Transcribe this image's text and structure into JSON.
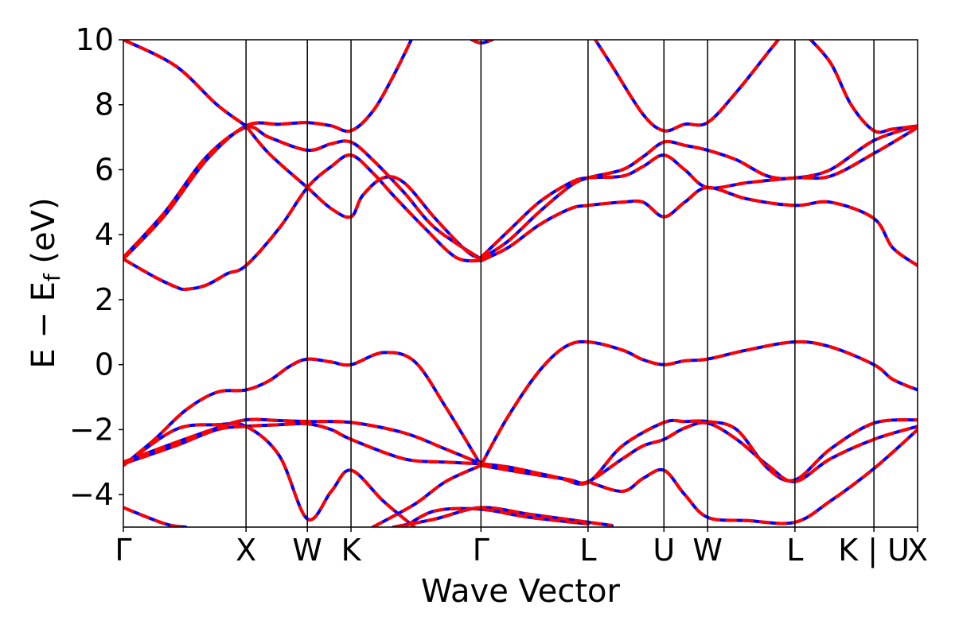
{
  "chart_data": {
    "type": "line",
    "title": "",
    "xlabel": "Wave Vector",
    "ylabel_parts": {
      "main": "E − E",
      "sub": "f",
      "unit": " (eV)"
    },
    "ylim": [
      -5,
      10
    ],
    "xlim": [
      0,
      7.64
    ],
    "yticks": [
      -4,
      -2,
      0,
      2,
      4,
      6,
      8,
      10
    ],
    "ytick_labels": [
      "−4",
      "−2",
      "0",
      "2",
      "4",
      "6",
      "8",
      "10"
    ],
    "kpoint_positions": [
      0,
      1.18,
      1.77,
      2.19,
      3.44,
      4.47,
      5.2,
      5.62,
      6.46,
      7.22,
      7.64
    ],
    "kpoint_labels": [
      "Γ",
      "X",
      "W",
      "K",
      "Γ",
      "L",
      "U",
      "W",
      "L",
      "K | U",
      "X"
    ],
    "grid": false,
    "legend": "none",
    "colors": {
      "series_1": "#0000ff",
      "series_2": "#ff0000",
      "vlines": "#000000"
    },
    "series": [
      {
        "style": "solid",
        "bands": [
          [
            [
              0,
              -3.1
            ],
            [
              0.3,
              -2.3
            ],
            [
              0.6,
              -1.4
            ],
            [
              0.9,
              -0.85
            ],
            [
              1.18,
              -0.78
            ],
            [
              1.4,
              -0.5
            ],
            [
              1.6,
              -0.05
            ],
            [
              1.77,
              0.17
            ],
            [
              2.0,
              0.08
            ],
            [
              2.19,
              0.0
            ],
            [
              2.5,
              0.37
            ],
            [
              2.8,
              0.1
            ],
            [
              3.1,
              -1.3
            ],
            [
              3.44,
              -3.1
            ]
          ],
          [
            [
              3.44,
              -3.1
            ],
            [
              3.7,
              -1.6
            ],
            [
              4.0,
              -0.2
            ],
            [
              4.25,
              0.55
            ],
            [
              4.47,
              0.7
            ],
            [
              4.8,
              0.45
            ],
            [
              5.0,
              0.15
            ],
            [
              5.2,
              0.0
            ],
            [
              5.4,
              0.12
            ],
            [
              5.62,
              0.17
            ],
            [
              6.0,
              0.45
            ],
            [
              6.46,
              0.7
            ],
            [
              6.8,
              0.55
            ],
            [
              7.22,
              0.0
            ],
            [
              7.4,
              -0.45
            ],
            [
              7.64,
              -0.78
            ]
          ],
          [
            [
              0,
              -3.0
            ],
            [
              0.5,
              -2.4
            ],
            [
              0.9,
              -1.95
            ],
            [
              1.18,
              -1.7
            ],
            [
              1.5,
              -1.72
            ],
            [
              1.77,
              -1.75
            ],
            [
              2.19,
              -1.78
            ],
            [
              2.7,
              -2.1
            ],
            [
              3.1,
              -2.6
            ],
            [
              3.44,
              -3.05
            ]
          ],
          [
            [
              0,
              -3.05
            ],
            [
              0.5,
              -2.5
            ],
            [
              0.9,
              -2.0
            ],
            [
              1.18,
              -1.9
            ],
            [
              1.5,
              -1.85
            ],
            [
              1.77,
              -1.82
            ],
            [
              2.0,
              -2.0
            ],
            [
              2.19,
              -2.3
            ],
            [
              2.7,
              -2.9
            ],
            [
              3.1,
              -3.0
            ],
            [
              3.44,
              -3.05
            ]
          ],
          [
            [
              0,
              -3.1
            ],
            [
              0.5,
              -2.0
            ],
            [
              0.9,
              -1.85
            ],
            [
              1.18,
              -1.9
            ],
            [
              1.5,
              -2.8
            ],
            [
              1.77,
              -4.75
            ],
            [
              2.0,
              -3.9
            ],
            [
              2.19,
              -3.25
            ],
            [
              2.5,
              -4.2
            ],
            [
              2.8,
              -5.0
            ]
          ],
          [
            [
              3.44,
              -3.05
            ],
            [
              3.7,
              -3.15
            ],
            [
              4.0,
              -3.35
            ],
            [
              4.3,
              -3.55
            ],
            [
              4.47,
              -3.6
            ],
            [
              4.8,
              -2.9
            ],
            [
              5.0,
              -2.5
            ],
            [
              5.2,
              -2.3
            ],
            [
              5.4,
              -1.95
            ],
            [
              5.62,
              -1.8
            ],
            [
              5.9,
              -2.3
            ],
            [
              6.2,
              -3.1
            ],
            [
              6.46,
              -3.6
            ],
            [
              6.8,
              -2.9
            ],
            [
              7.22,
              -2.3
            ],
            [
              7.64,
              -1.9
            ]
          ],
          [
            [
              3.44,
              -3.1
            ],
            [
              3.8,
              -3.3
            ],
            [
              4.2,
              -3.5
            ],
            [
              4.47,
              -3.62
            ],
            [
              4.8,
              -2.5
            ],
            [
              5.2,
              -1.78
            ],
            [
              5.4,
              -1.75
            ],
            [
              5.62,
              -1.75
            ],
            [
              5.9,
              -2.0
            ],
            [
              6.2,
              -3.2
            ],
            [
              6.46,
              -3.55
            ],
            [
              6.8,
              -2.6
            ],
            [
              7.22,
              -1.8
            ],
            [
              7.64,
              -1.7
            ]
          ],
          [
            [
              4.47,
              -3.6
            ],
            [
              4.8,
              -3.9
            ],
            [
              5.0,
              -3.5
            ],
            [
              5.2,
              -3.25
            ],
            [
              5.4,
              -4.0
            ],
            [
              5.62,
              -4.7
            ],
            [
              6.0,
              -4.8
            ],
            [
              6.46,
              -4.85
            ],
            [
              6.8,
              -4.2
            ],
            [
              7.22,
              -3.2
            ],
            [
              7.64,
              -2.0
            ]
          ],
          [
            [
              0,
              -4.4
            ],
            [
              0.4,
              -4.9
            ],
            [
              0.6,
              -5.0
            ]
          ],
          [
            [
              2.6,
              -5.0
            ],
            [
              3.0,
              -4.75
            ],
            [
              3.44,
              -4.4
            ],
            [
              3.9,
              -4.6
            ],
            [
              4.47,
              -4.85
            ],
            [
              4.7,
              -4.95
            ]
          ],
          [
            [
              2.7,
              -5.0
            ],
            [
              3.0,
              -4.5
            ],
            [
              3.44,
              -4.45
            ],
            [
              3.9,
              -4.7
            ],
            [
              4.47,
              -4.9
            ]
          ],
          [
            [
              2.4,
              -5.0
            ],
            [
              2.8,
              -4.3
            ],
            [
              3.1,
              -3.6
            ],
            [
              3.44,
              -3.1
            ]
          ],
          [
            [
              0,
              3.25
            ],
            [
              0.3,
              2.7
            ],
            [
              0.5,
              2.4
            ],
            [
              0.6,
              2.32
            ],
            [
              0.8,
              2.45
            ],
            [
              1.0,
              2.8
            ],
            [
              1.18,
              3.05
            ],
            [
              1.5,
              4.2
            ],
            [
              1.77,
              5.45
            ],
            [
              2.0,
              6.1
            ],
            [
              2.19,
              6.45
            ],
            [
              2.4,
              5.9
            ],
            [
              2.6,
              5.2
            ],
            [
              2.9,
              4.2
            ],
            [
              3.2,
              3.3
            ],
            [
              3.44,
              3.2
            ]
          ],
          [
            [
              0,
              3.25
            ],
            [
              0.4,
              4.6
            ],
            [
              0.8,
              6.3
            ],
            [
              1.18,
              7.35
            ],
            [
              1.5,
              7.4
            ],
            [
              1.77,
              7.45
            ],
            [
              2.0,
              7.35
            ],
            [
              2.19,
              7.2
            ],
            [
              2.4,
              7.8
            ],
            [
              2.6,
              8.9
            ],
            [
              2.8,
              10.2
            ]
          ],
          [
            [
              0,
              3.3
            ],
            [
              0.4,
              4.7
            ],
            [
              0.8,
              6.4
            ],
            [
              1.18,
              7.3
            ],
            [
              1.4,
              7.0
            ],
            [
              1.77,
              6.6
            ],
            [
              2.0,
              6.8
            ],
            [
              2.19,
              6.85
            ],
            [
              2.4,
              6.3
            ],
            [
              2.7,
              5.3
            ],
            [
              3.0,
              4.2
            ],
            [
              3.44,
              3.25
            ]
          ],
          [
            [
              1.18,
              7.35
            ],
            [
              1.4,
              6.5
            ],
            [
              1.77,
              5.45
            ],
            [
              2.0,
              4.8
            ],
            [
              2.19,
              4.55
            ],
            [
              2.3,
              5.2
            ],
            [
              2.5,
              5.75
            ],
            [
              2.7,
              5.6
            ],
            [
              3.0,
              4.5
            ],
            [
              3.3,
              3.5
            ],
            [
              3.44,
              3.25
            ]
          ],
          [
            [
              0,
              10.0
            ],
            [
              0.5,
              9.2
            ],
            [
              0.9,
              8.0
            ],
            [
              1.18,
              7.35
            ]
          ],
          [
            [
              3.44,
              3.25
            ],
            [
              3.7,
              3.8
            ],
            [
              4.0,
              4.7
            ],
            [
              4.3,
              5.5
            ],
            [
              4.47,
              5.75
            ],
            [
              4.8,
              6.0
            ],
            [
              5.0,
              6.4
            ],
            [
              5.2,
              6.85
            ],
            [
              5.4,
              6.75
            ],
            [
              5.62,
              6.6
            ],
            [
              5.9,
              6.3
            ],
            [
              6.2,
              5.8
            ],
            [
              6.46,
              5.75
            ],
            [
              6.8,
              6.0
            ],
            [
              7.22,
              6.9
            ],
            [
              7.64,
              7.35
            ]
          ],
          [
            [
              3.44,
              3.2
            ],
            [
              3.7,
              3.6
            ],
            [
              4.0,
              4.3
            ],
            [
              4.3,
              4.8
            ],
            [
              4.47,
              4.9
            ],
            [
              4.8,
              5.0
            ],
            [
              5.0,
              5.0
            ],
            [
              5.2,
              4.55
            ],
            [
              5.4,
              5.0
            ],
            [
              5.62,
              5.45
            ],
            [
              6.0,
              5.1
            ],
            [
              6.46,
              4.9
            ],
            [
              6.8,
              5.0
            ],
            [
              7.22,
              4.5
            ],
            [
              7.4,
              3.6
            ],
            [
              7.64,
              3.05
            ]
          ],
          [
            [
              3.44,
              3.3
            ],
            [
              3.7,
              4.1
            ],
            [
              4.0,
              5.0
            ],
            [
              4.3,
              5.6
            ],
            [
              4.47,
              5.75
            ],
            [
              4.8,
              5.8
            ],
            [
              5.0,
              6.1
            ],
            [
              5.2,
              6.45
            ],
            [
              5.4,
              6.0
            ],
            [
              5.62,
              5.45
            ],
            [
              6.0,
              5.6
            ],
            [
              6.46,
              5.75
            ],
            [
              6.8,
              5.8
            ],
            [
              7.22,
              6.5
            ],
            [
              7.64,
              7.3
            ]
          ],
          [
            [
              4.5,
              10.2
            ],
            [
              4.7,
              9.2
            ],
            [
              5.0,
              7.7
            ],
            [
              5.2,
              7.2
            ],
            [
              5.4,
              7.4
            ],
            [
              5.62,
              7.45
            ],
            [
              5.9,
              8.4
            ],
            [
              6.2,
              9.6
            ],
            [
              6.35,
              10.2
            ]
          ],
          [
            [
              6.55,
              10.2
            ],
            [
              6.8,
              9.3
            ],
            [
              7.0,
              8.0
            ],
            [
              7.22,
              7.2
            ],
            [
              7.4,
              7.25
            ],
            [
              7.64,
              7.35
            ]
          ],
          [
            [
              3.35,
              10.0
            ],
            [
              3.44,
              9.9
            ],
            [
              3.55,
              10.0
            ]
          ]
        ]
      },
      {
        "style": "dashed",
        "bands_same_as": "series_1"
      }
    ]
  }
}
